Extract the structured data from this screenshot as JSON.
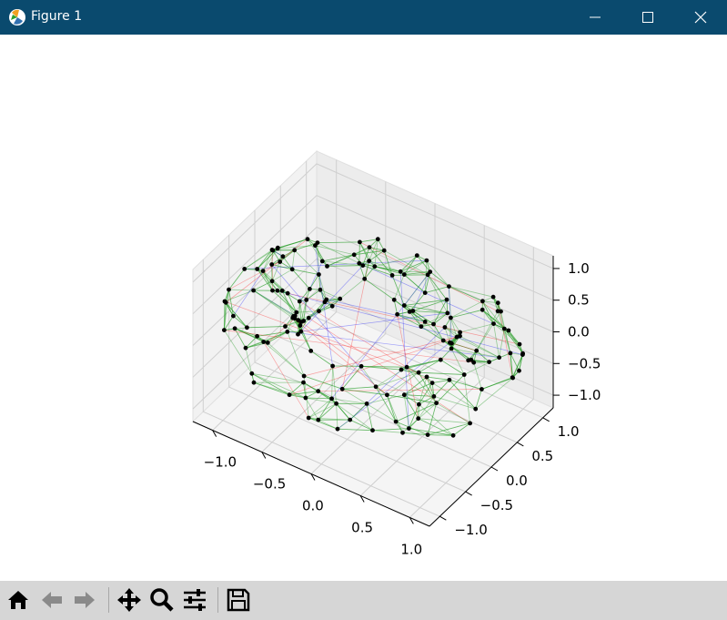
{
  "window": {
    "title": "Figure 1"
  },
  "icons": {
    "app": "matplotlib-icon",
    "minimize": "minimize-icon",
    "maximize": "maximize-icon",
    "close": "close-icon"
  },
  "toolbar": {
    "tools": [
      "home-icon",
      "back-arrow-icon",
      "forward-arrow-icon",
      "pan-icon",
      "zoom-icon",
      "configure-subplots-icon",
      "save-icon"
    ]
  },
  "chart_data": {
    "type": "scatter",
    "projection": "3d",
    "description_of_marks": "points on a torus-like ring with connecting edges",
    "edge_colors": [
      "#2ca02c",
      "#ff0000",
      "#0000ff"
    ],
    "point_color": "#000000",
    "xlim": [
      -1.2,
      1.2
    ],
    "ylim": [
      -1.2,
      1.2
    ],
    "zlim": [
      -1.2,
      1.2
    ],
    "x_ticks": [
      "−1.0",
      "−0.5",
      "0.0",
      "0.5",
      "1.0"
    ],
    "y_ticks": [
      "−1.0",
      "−0.5",
      "0.0",
      "0.5",
      "1.0"
    ],
    "z_ticks": [
      "−1.0",
      "−0.5",
      "0.0",
      "0.5",
      "1.0"
    ],
    "torus": {
      "major_radius": 1.0,
      "minor_radius": 0.35,
      "n_points": 160
    },
    "grid": true
  }
}
